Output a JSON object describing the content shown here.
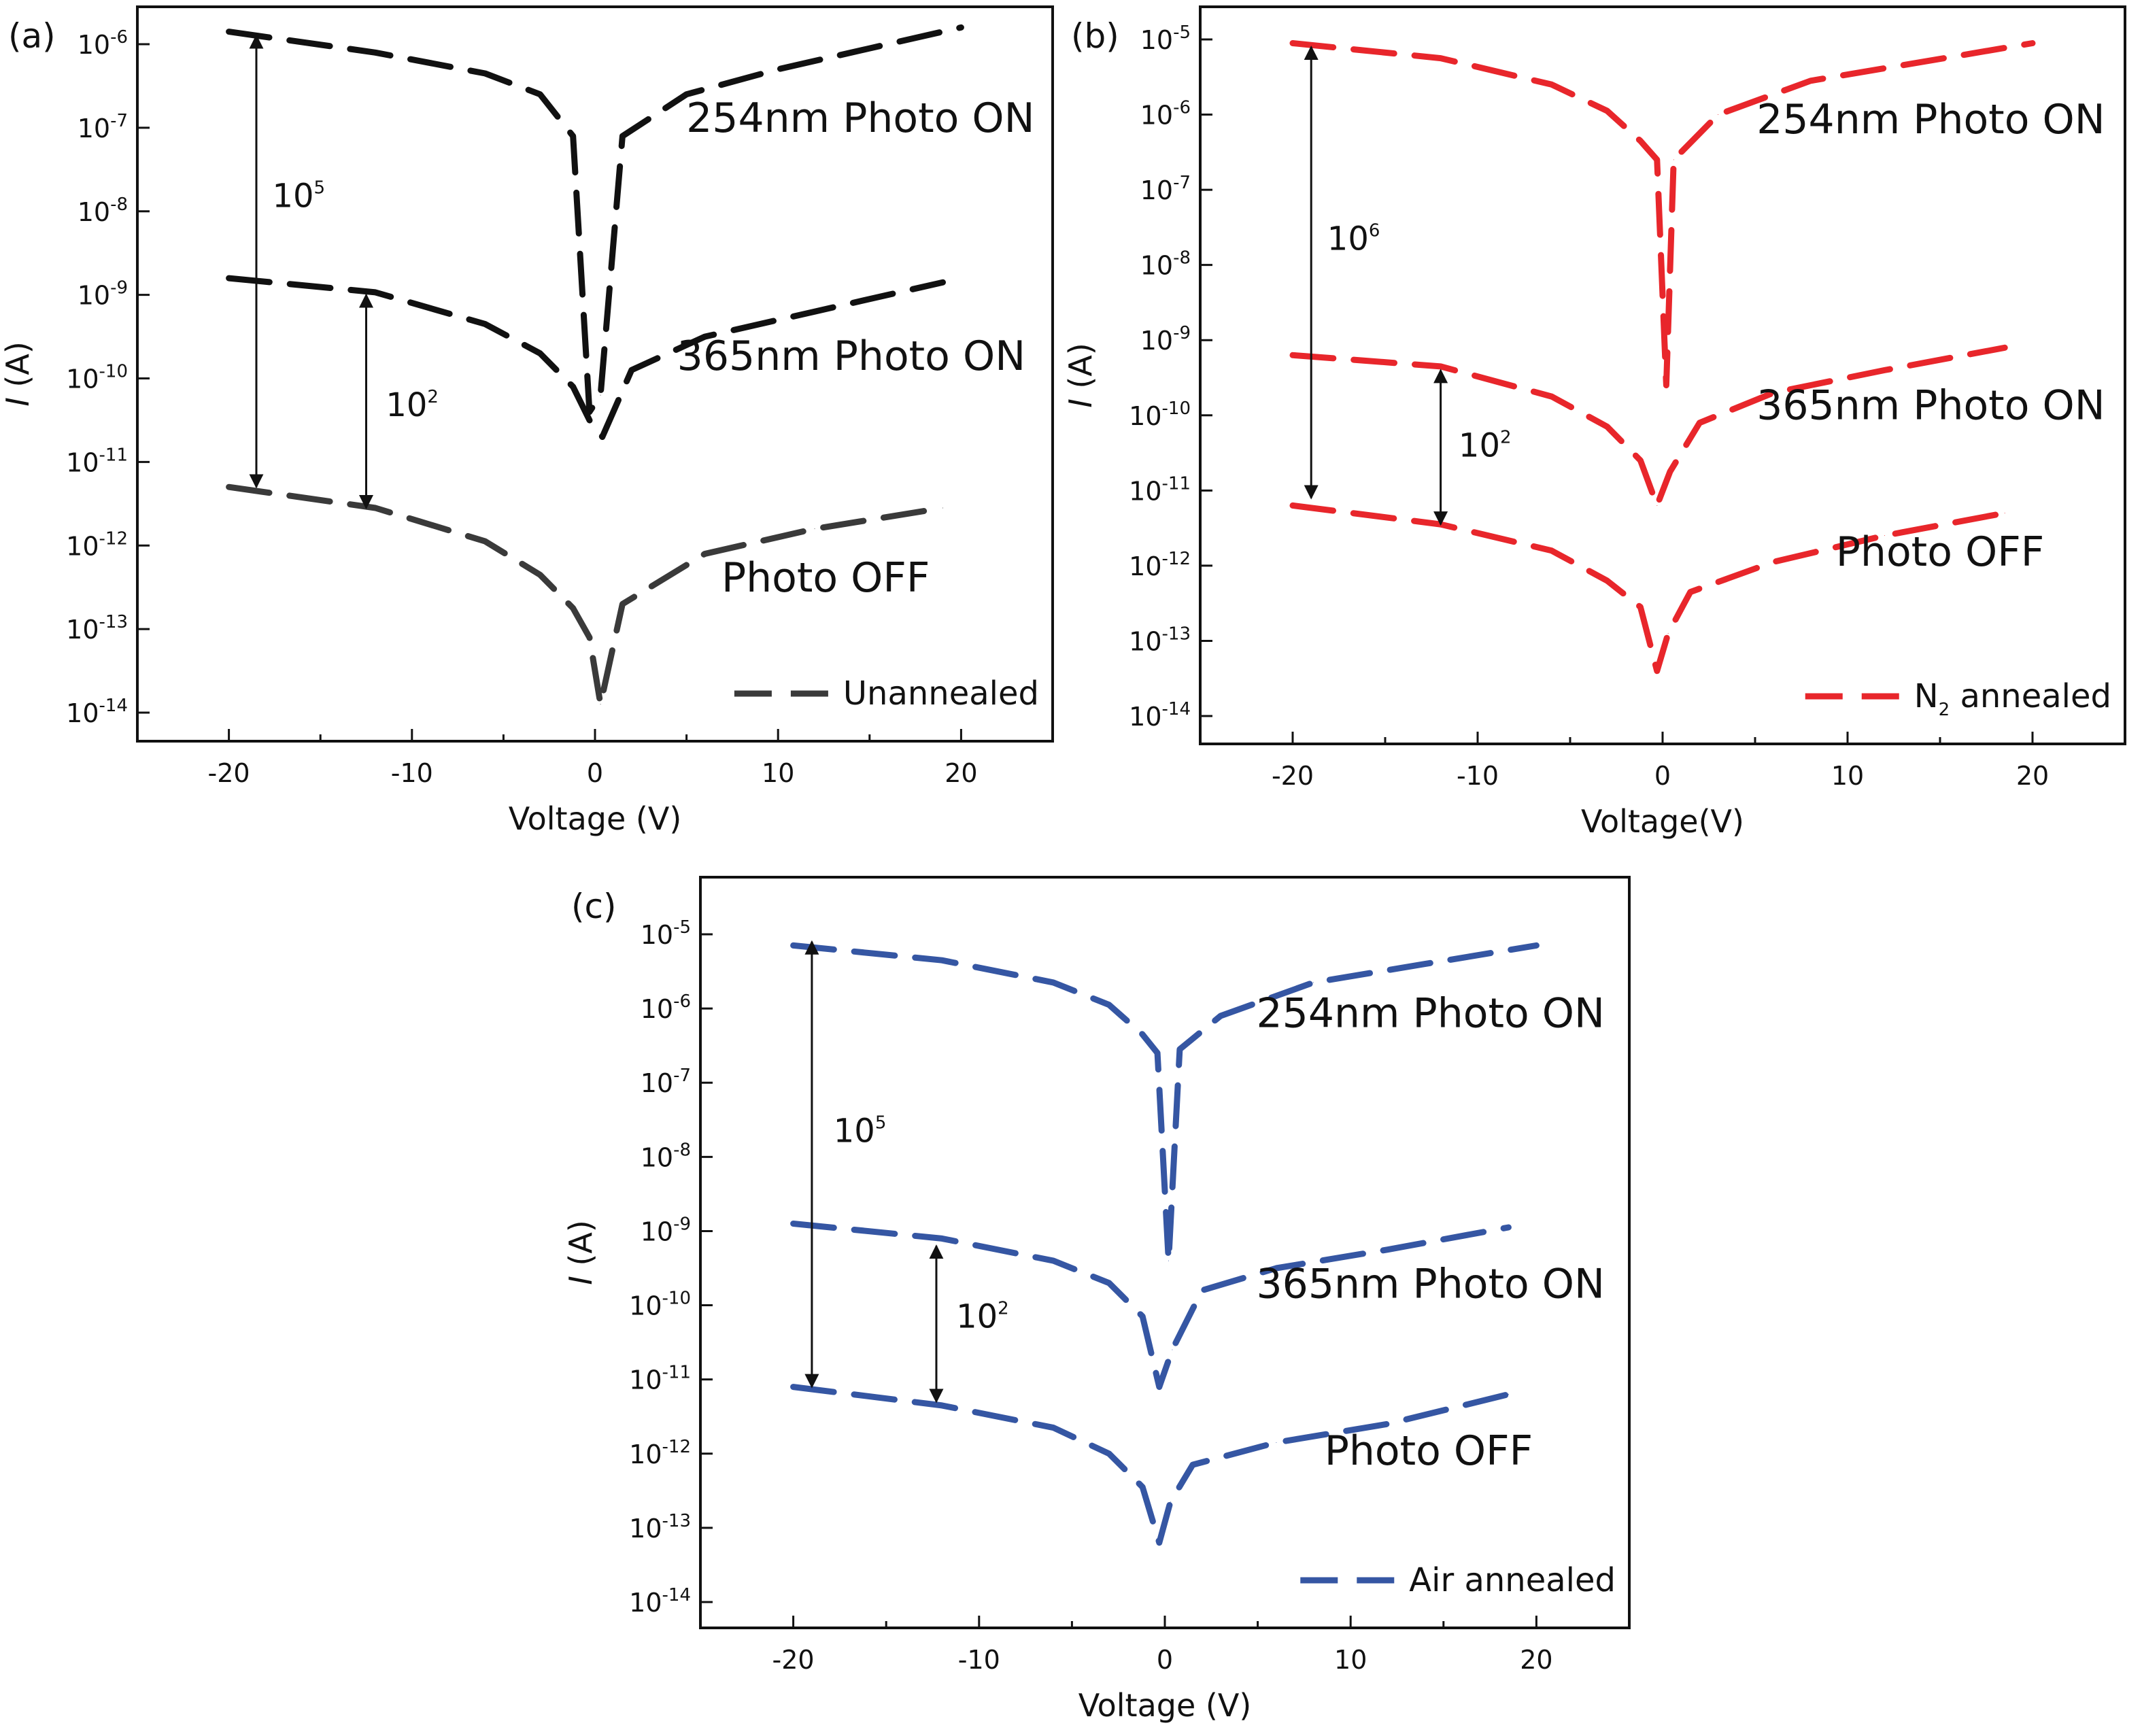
{
  "figure": {
    "panels": [
      {
        "id": "a",
        "panel_label": "(a)",
        "legend_label": "Unannealed",
        "legend_sub": "",
        "legend_suffix": "",
        "color": "#3a3a3a",
        "on_color": "#111111",
        "xlabel": "Voltage (V)",
        "ylabel_italic": "I",
        "ylabel_rest": " (A)",
        "curve_labels": [
          "254nm Photo ON",
          "365nm Photo ON",
          "Photo OFF"
        ],
        "ratio_labels": [
          {
            "base": "10",
            "exp": "5"
          },
          {
            "base": "10",
            "exp": "2"
          }
        ],
        "chart_data": {
          "type": "line",
          "xlim": [
            -25,
            25
          ],
          "xticks": [
            -20,
            -10,
            0,
            10,
            20
          ],
          "yscale": "log",
          "yexp_range": [
            -14,
            -6
          ],
          "series": [
            {
              "name": "254nm Photo ON",
              "x": [
                -20,
                -12,
                -6,
                -3,
                -1.2,
                -0.3,
                0.3,
                1.5,
                5,
                10,
                15,
                20
              ],
              "log10_y": [
                -5.85,
                -6.1,
                -6.35,
                -6.6,
                -7.1,
                -10.4,
                -10.2,
                -7.1,
                -6.6,
                -6.3,
                -6.05,
                -5.8
              ]
            },
            {
              "name": "365nm Photo ON",
              "x": [
                -20,
                -12,
                -6,
                -3,
                -1.2,
                -0.3,
                0.4,
                2,
                6,
                12,
                19
              ],
              "log10_y": [
                -8.8,
                -8.97,
                -9.35,
                -9.7,
                -10.1,
                -10.5,
                -10.7,
                -9.9,
                -9.5,
                -9.2,
                -8.85
              ]
            },
            {
              "name": "Photo OFF",
              "x": [
                -20,
                -12,
                -6,
                -3,
                -1.2,
                -0.3,
                0.3,
                1.5,
                6,
                12,
                19
              ],
              "log10_y": [
                -11.3,
                -11.55,
                -11.95,
                -12.35,
                -12.75,
                -13.1,
                -13.9,
                -12.7,
                -12.1,
                -11.8,
                -11.55
              ]
            }
          ],
          "arrows": [
            {
              "x": -18.5,
              "from_exp": -11.3,
              "to_exp": -5.9,
              "label_exp": -7.95,
              "label_x": -18
            },
            {
              "x": -12.5,
              "from_exp": -11.55,
              "to_exp": -9.0,
              "label_exp": -10.45,
              "label_x": -11.8
            }
          ],
          "label_positions": [
            {
              "x": 14.5,
              "exp": -7.05
            },
            {
              "x": 14,
              "exp": -9.9
            },
            {
              "x": 12.6,
              "exp": -12.55
            }
          ]
        }
      },
      {
        "id": "b",
        "panel_label": "(b)",
        "legend_label": "N",
        "legend_sub": "2",
        "legend_suffix": " annealed",
        "color": "#e8262b",
        "on_color": "#e8262b",
        "xlabel": "Voltage(V)",
        "ylabel_italic": "I",
        "ylabel_rest": " (A)",
        "curve_labels": [
          "254nm Photo ON",
          "365nm Photo ON",
          "Photo OFF"
        ],
        "ratio_labels": [
          {
            "base": "10",
            "exp": "6"
          },
          {
            "base": "10",
            "exp": "2"
          }
        ],
        "chart_data": {
          "type": "line",
          "xlim": [
            -25,
            25
          ],
          "xticks": [
            -20,
            -10,
            0,
            10,
            20
          ],
          "yscale": "log",
          "yexp_range": [
            -14,
            -5
          ],
          "series": [
            {
              "name": "254nm Photo ON",
              "x": [
                -20,
                -12,
                -6,
                -3,
                -1.2,
                -0.3,
                0.2,
                0.6,
                3,
                8,
                14,
                20
              ],
              "log10_y": [
                -5.05,
                -5.25,
                -5.6,
                -5.95,
                -6.35,
                -6.6,
                -9.6,
                -6.6,
                -6.0,
                -5.55,
                -5.3,
                -5.05
              ]
            },
            {
              "name": "365nm Photo ON",
              "x": [
                -20,
                -12,
                -6,
                -3,
                -1.2,
                -0.3,
                0.4,
                2,
                6,
                12,
                18.5
              ],
              "log10_y": [
                -9.2,
                -9.35,
                -9.75,
                -10.15,
                -10.6,
                -11.2,
                -10.75,
                -10.1,
                -9.7,
                -9.4,
                -9.1
              ]
            },
            {
              "name": "Photo OFF",
              "x": [
                -20,
                -12,
                -6,
                -3,
                -1.2,
                -0.3,
                0.3,
                1.5,
                6,
                12,
                18.5
              ],
              "log10_y": [
                -11.2,
                -11.45,
                -11.8,
                -12.2,
                -12.55,
                -13.4,
                -12.9,
                -12.35,
                -11.95,
                -11.6,
                -11.3
              ]
            }
          ],
          "arrows": [
            {
              "x": -19,
              "from_exp": -11.1,
              "to_exp": -5.1,
              "label_exp": -7.8,
              "label_x": -18.5
            },
            {
              "x": -12,
              "from_exp": -11.45,
              "to_exp": -9.4,
              "label_exp": -10.55,
              "label_x": -11.4
            }
          ],
          "label_positions": [
            {
              "x": 14.5,
              "exp": -6.25
            },
            {
              "x": 14.5,
              "exp": -10.05
            },
            {
              "x": 15,
              "exp": -12.0
            }
          ]
        }
      },
      {
        "id": "c",
        "panel_label": "(c)",
        "legend_label": "Air annealed",
        "legend_sub": "",
        "legend_suffix": "",
        "color": "#3556a3",
        "on_color": "#3556a3",
        "xlabel": "Voltage (V)",
        "ylabel_italic": "I",
        "ylabel_rest": " (A)",
        "curve_labels": [
          "254nm Photo ON",
          "365nm Photo ON",
          "Photo OFF"
        ],
        "ratio_labels": [
          {
            "base": "10",
            "exp": "5"
          },
          {
            "base": "10",
            "exp": "2"
          }
        ],
        "chart_data": {
          "type": "line",
          "xlim": [
            -25,
            25
          ],
          "xticks": [
            -20,
            -10,
            0,
            10,
            20
          ],
          "yscale": "log",
          "yexp_range": [
            -14,
            -5
          ],
          "series": [
            {
              "name": "254nm Photo ON",
              "x": [
                -20,
                -12,
                -6,
                -3,
                -1.2,
                -0.4,
                0.2,
                0.8,
                3,
                8,
                14,
                20
              ],
              "log10_y": [
                -5.15,
                -5.35,
                -5.65,
                -5.95,
                -6.35,
                -6.6,
                -9.4,
                -6.55,
                -6.1,
                -5.65,
                -5.4,
                -5.15
              ]
            },
            {
              "name": "365nm Photo ON",
              "x": [
                -20,
                -12,
                -6,
                -3,
                -1.2,
                -0.3,
                0.4,
                2,
                6,
                12,
                18.5
              ],
              "log10_y": [
                -8.9,
                -9.1,
                -9.4,
                -9.7,
                -10.15,
                -11.1,
                -10.6,
                -9.8,
                -9.5,
                -9.25,
                -8.95
              ]
            },
            {
              "name": "Photo OFF",
              "x": [
                -20,
                -12,
                -6,
                -3,
                -1.2,
                -0.3,
                0.3,
                1.5,
                6,
                12,
                18.5
              ],
              "log10_y": [
                -11.1,
                -11.35,
                -11.65,
                -12.0,
                -12.45,
                -13.2,
                -12.65,
                -12.15,
                -11.85,
                -11.6,
                -11.2
              ]
            }
          ],
          "arrows": [
            {
              "x": -19,
              "from_exp": -11.1,
              "to_exp": -5.1,
              "label_exp": -7.8,
              "label_x": -18.2
            },
            {
              "x": -12.3,
              "from_exp": -11.3,
              "to_exp": -9.2,
              "label_exp": -10.3,
              "label_x": -11.6
            }
          ],
          "label_positions": [
            {
              "x": 14.3,
              "exp": -6.25
            },
            {
              "x": 14.3,
              "exp": -9.9
            },
            {
              "x": 14.2,
              "exp": -12.15
            }
          ]
        }
      }
    ]
  }
}
